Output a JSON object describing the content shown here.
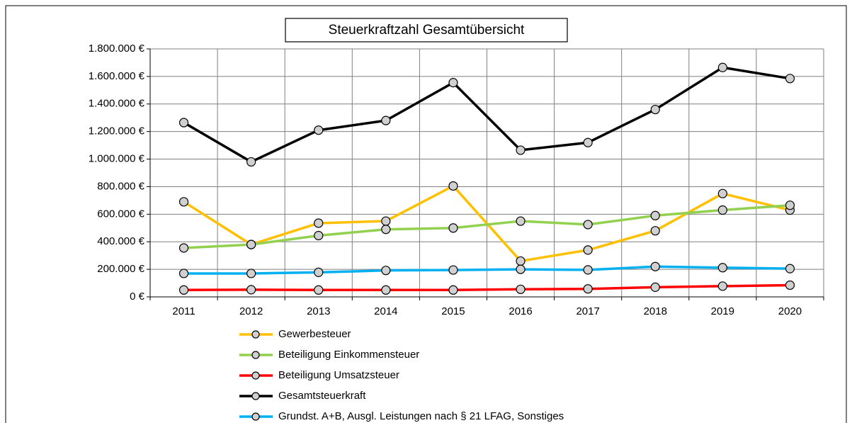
{
  "chart_data": {
    "type": "line",
    "title": "Steuerkraftzahl Gesamtübersicht",
    "categories": [
      "2011",
      "2012",
      "2013",
      "2014",
      "2015",
      "2016",
      "2017",
      "2018",
      "2019",
      "2020"
    ],
    "series": [
      {
        "name": "Gewerbesteuer",
        "color": "#ffc000",
        "values": [
          690000,
          380000,
          535000,
          550000,
          805000,
          260000,
          340000,
          480000,
          750000,
          630000
        ]
      },
      {
        "name": "Beteiligung Einkommensteuer",
        "color": "#92d050",
        "values": [
          355000,
          380000,
          445000,
          490000,
          500000,
          550000,
          525000,
          590000,
          630000,
          665000
        ]
      },
      {
        "name": "Beteiligung Umsatzsteuer",
        "color": "#ff0000",
        "values": [
          50000,
          52000,
          50000,
          50000,
          50000,
          55000,
          58000,
          70000,
          78000,
          85000
        ]
      },
      {
        "name": "Gesamtsteuerkraft",
        "color": "#000000",
        "values": [
          1265000,
          980000,
          1210000,
          1280000,
          1555000,
          1065000,
          1120000,
          1360000,
          1665000,
          1585000
        ]
      },
      {
        "name": "Grundst. A+B, Ausgl. Leistungen nach § 21 LFAG, Sonstiges",
        "color": "#00b0f0",
        "values": [
          170000,
          170000,
          178000,
          192000,
          195000,
          200000,
          196000,
          220000,
          212000,
          205000
        ]
      }
    ],
    "ylim": [
      0,
      1800000
    ],
    "yticks": [
      {
        "value": 0,
        "label": "0 €"
      },
      {
        "value": 200000,
        "label": "200.000 €"
      },
      {
        "value": 400000,
        "label": "400.000 €"
      },
      {
        "value": 600000,
        "label": "600.000 €"
      },
      {
        "value": 800000,
        "label": "800.000 €"
      },
      {
        "value": 1000000,
        "label": "1.000.000 €"
      },
      {
        "value": 1200000,
        "label": "1.200.000 €"
      },
      {
        "value": 1400000,
        "label": "1.400.000 €"
      },
      {
        "value": 1600000,
        "label": "1.600.000 €"
      },
      {
        "value": 1800000,
        "label": "1.800.000 €"
      }
    ],
    "grid": true,
    "legend": "bottom"
  }
}
